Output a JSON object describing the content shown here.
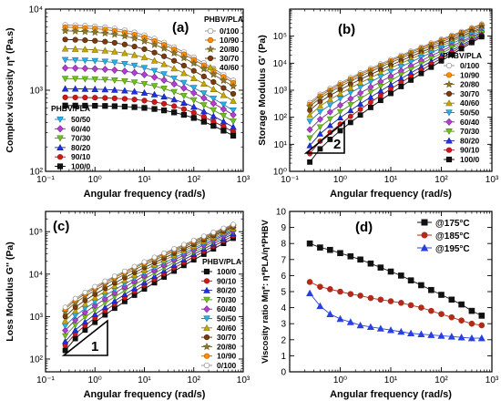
{
  "chart_data": [
    {
      "panel_label": "(a)",
      "type": "line",
      "xlabel": "Angular frequency (rad/s)",
      "ylabel": "Complex viscosity η* (Pa.s)",
      "xscale": "log",
      "yscale": "log",
      "xlim": [
        0.1,
        1000
      ],
      "ylim": [
        100,
        10000
      ],
      "x_tick_labels": [
        "10⁻¹",
        "10⁰",
        "10¹",
        "10²",
        "10³"
      ],
      "y_tick_labels": [
        "10²",
        "10³",
        "10⁴"
      ],
      "legend_title": "PHBV/PLA",
      "legend_placement": "right and lower-left",
      "x": [
        0.25,
        0.4,
        0.63,
        1,
        1.6,
        2.5,
        4,
        6.3,
        10,
        16,
        25,
        40,
        63,
        100,
        160,
        250,
        400,
        628
      ],
      "series": [
        {
          "name": "0/100",
          "plateau": 6500,
          "corner": 10,
          "marker": "circle",
          "fill": "#ffffff",
          "stroke": "#888888"
        },
        {
          "name": "10/90",
          "plateau": 6100,
          "corner": 10,
          "marker": "circle",
          "fill": "#ff8c00",
          "stroke": "#b05a00"
        },
        {
          "name": "20/80",
          "plateau": 5500,
          "corner": 10,
          "marker": "star",
          "fill": "#8b7a2f",
          "stroke": "#6b5a1f"
        },
        {
          "name": "30/70",
          "plateau": 4300,
          "corner": 11,
          "marker": "circle",
          "fill": "#7a3b10",
          "stroke": "#4a2008"
        },
        {
          "name": "40/60",
          "plateau": 3300,
          "corner": 13,
          "marker": "triangle",
          "fill": "#c8a800",
          "stroke": "#8a7400"
        },
        {
          "name": "50/50",
          "plateau": 2400,
          "corner": 15,
          "marker": "triangle-down",
          "fill": "#2ab0e8",
          "stroke": "#1a7aa8"
        },
        {
          "name": "60/40",
          "plateau": 1900,
          "corner": 20,
          "marker": "diamond",
          "fill": "#b040d0",
          "stroke": "#7a2090"
        },
        {
          "name": "70/30",
          "plateau": 1400,
          "corner": 28,
          "marker": "triangle-down",
          "fill": "#70c020",
          "stroke": "#4a8a10"
        },
        {
          "name": "80/20",
          "plateau": 1050,
          "corner": 40,
          "marker": "triangle",
          "fill": "#2030e0",
          "stroke": "#1020a0"
        },
        {
          "name": "90/10",
          "plateau": 820,
          "corner": 55,
          "marker": "circle",
          "fill": "#d01818",
          "stroke": "#901010"
        },
        {
          "name": "100/0",
          "plateau": 650,
          "corner": 80,
          "marker": "square",
          "fill": "#111111",
          "stroke": "#000000"
        }
      ]
    },
    {
      "panel_label": "(b)",
      "type": "line",
      "xlabel": "Angular frequency (rad/s)",
      "ylabel": "Storage Modulus G' (Pa)",
      "xscale": "log",
      "yscale": "log",
      "xlim": [
        0.1,
        1000
      ],
      "ylim": [
        1,
        1000000
      ],
      "x_tick_labels": [
        "10⁻¹",
        "10⁰",
        "10¹",
        "10²",
        "10³"
      ],
      "y_tick_labels": [
        "10⁰",
        "10¹",
        "10²",
        "10³",
        "10⁴",
        "10⁵"
      ],
      "legend_title": "PHBV/PLA",
      "legend_placement": "right",
      "slope_label": "2",
      "series_order": [
        "0/100",
        "10/90",
        "20/80",
        "30/70",
        "40/60",
        "50/50",
        "60/40",
        "70/30",
        "80/20",
        "90/10",
        "100/0"
      ],
      "low_frequency_G": [
        350,
        300,
        250,
        180,
        120,
        70,
        35,
        17,
        9,
        4.5,
        2.2
      ],
      "high_frequency_G": [
        280000,
        260000,
        230000,
        200000,
        180000,
        160000,
        140000,
        130000,
        115000,
        105000,
        95000
      ]
    },
    {
      "panel_label": "(c)",
      "type": "line",
      "xlabel": "Angular frequency (rad/s)",
      "ylabel": "Loss Modulus G'' (Pa)",
      "xscale": "log",
      "yscale": "log",
      "xlim": [
        0.1,
        1000
      ],
      "ylim": [
        50,
        300000
      ],
      "x_tick_labels": [
        "10⁻¹",
        "10⁰",
        "10¹",
        "10²",
        "10³"
      ],
      "y_tick_labels": [
        "10²",
        "10³",
        "10⁴",
        "10⁵"
      ],
      "legend_title": "PHBV/PLA",
      "legend_placement": "right",
      "slope_label": "1",
      "series_order": [
        "100/0",
        "90/10",
        "80/20",
        "70/30",
        "60/40",
        "50/50",
        "40/60",
        "30/70",
        "20/80",
        "10/90",
        "0/100"
      ],
      "low_frequency_G": [
        160,
        210,
        260,
        350,
        470,
        600,
        800,
        1000,
        1300,
        1500,
        1650
      ],
      "high_frequency_G": [
        70000,
        80000,
        90000,
        98000,
        105000,
        112000,
        120000,
        128000,
        135000,
        142000,
        148000
      ]
    },
    {
      "panel_label": "(d)",
      "type": "line",
      "xlabel": "Angular frequency (rad/s)",
      "ylabel": "Viscosity ratio Mη*: η*PLA/η*PHBV",
      "xscale": "log",
      "xlim": [
        0.1,
        1000
      ],
      "ylim": [
        0,
        10
      ],
      "x_tick_labels": [
        "10⁰",
        "10¹",
        "10²",
        "10³"
      ],
      "y_tick_labels": [
        "0",
        "1",
        "2",
        "3",
        "4",
        "5",
        "6",
        "7",
        "8",
        "9",
        "10"
      ],
      "grid": true,
      "legend_placement": "top-right",
      "x": [
        0.25,
        0.4,
        0.63,
        1,
        1.6,
        2.5,
        4,
        6.3,
        10,
        16,
        25,
        40,
        63,
        100,
        160,
        250,
        400,
        628
      ],
      "series": [
        {
          "name": "@175°C",
          "marker": "square",
          "fill": "#111111",
          "values": [
            8.0,
            7.75,
            7.6,
            7.4,
            7.2,
            7.0,
            6.75,
            6.5,
            6.25,
            6.0,
            5.7,
            5.4,
            5.1,
            4.8,
            4.5,
            4.2,
            3.8,
            3.5
          ]
        },
        {
          "name": "@185°C",
          "marker": "circle",
          "fill": "#b22a1a",
          "values": [
            5.6,
            5.3,
            5.15,
            5.0,
            4.85,
            4.75,
            4.6,
            4.5,
            4.4,
            4.3,
            4.15,
            4.0,
            3.8,
            3.6,
            3.4,
            3.2,
            3.0,
            2.9
          ]
        },
        {
          "name": "@195°C",
          "marker": "triangle",
          "fill": "#2840e0",
          "values": [
            4.9,
            4.1,
            3.6,
            3.3,
            3.1,
            2.9,
            2.8,
            2.7,
            2.6,
            2.5,
            2.4,
            2.35,
            2.3,
            2.25,
            2.2,
            2.15,
            2.1,
            2.1
          ]
        }
      ]
    }
  ]
}
